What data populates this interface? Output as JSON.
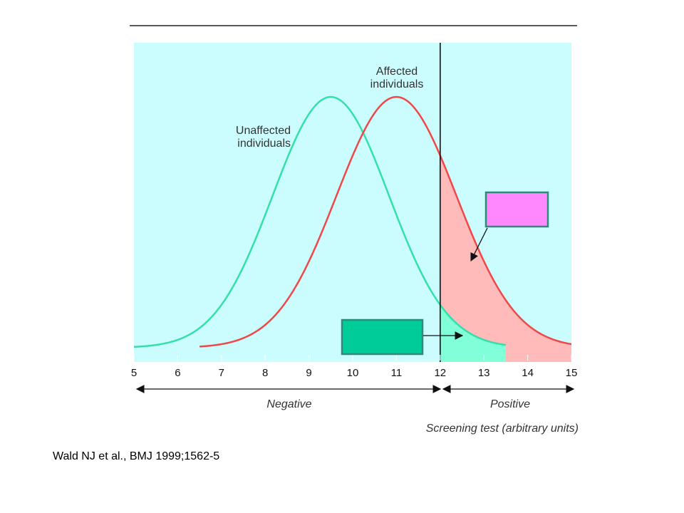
{
  "citation": "Wald NJ et al., BMJ 1999;1562-5",
  "chart_data": {
    "type": "area",
    "title": "",
    "xlabel": "Screening test (arbitrary units)",
    "ylabel": "",
    "xlim": [
      5,
      15
    ],
    "x_ticks": [
      5,
      6,
      7,
      8,
      9,
      10,
      11,
      12,
      13,
      14,
      15
    ],
    "cutoff": 12,
    "regions": [
      {
        "label": "Negative",
        "from": 5,
        "to": 12
      },
      {
        "label": "Positive",
        "from": 12,
        "to": 15
      }
    ],
    "series": [
      {
        "name": "Unaffected individuals",
        "distribution": "normal",
        "mean": 9.5,
        "sd": 1.33,
        "x_range": [
          5,
          13.5
        ],
        "color": "#33e0a8"
      },
      {
        "name": "Affected individuals",
        "distribution": "normal",
        "mean": 11.0,
        "sd": 1.37,
        "x_range": [
          6.5,
          15
        ],
        "color": "#f04848"
      }
    ],
    "shaded_areas": [
      {
        "series": "Affected individuals",
        "from": 12,
        "to": 15,
        "color": "#ffbaba"
      },
      {
        "series": "Unaffected individuals",
        "from": 12,
        "to": 13.5,
        "color": "#80ffd8"
      }
    ],
    "grid": false,
    "colors": {
      "plot_background": "#ccfdfe",
      "callout_pink": "#ff88ff",
      "callout_green": "#00cc99",
      "callout_border": "#2e8b7a",
      "cutoff_line": "#000000"
    }
  }
}
